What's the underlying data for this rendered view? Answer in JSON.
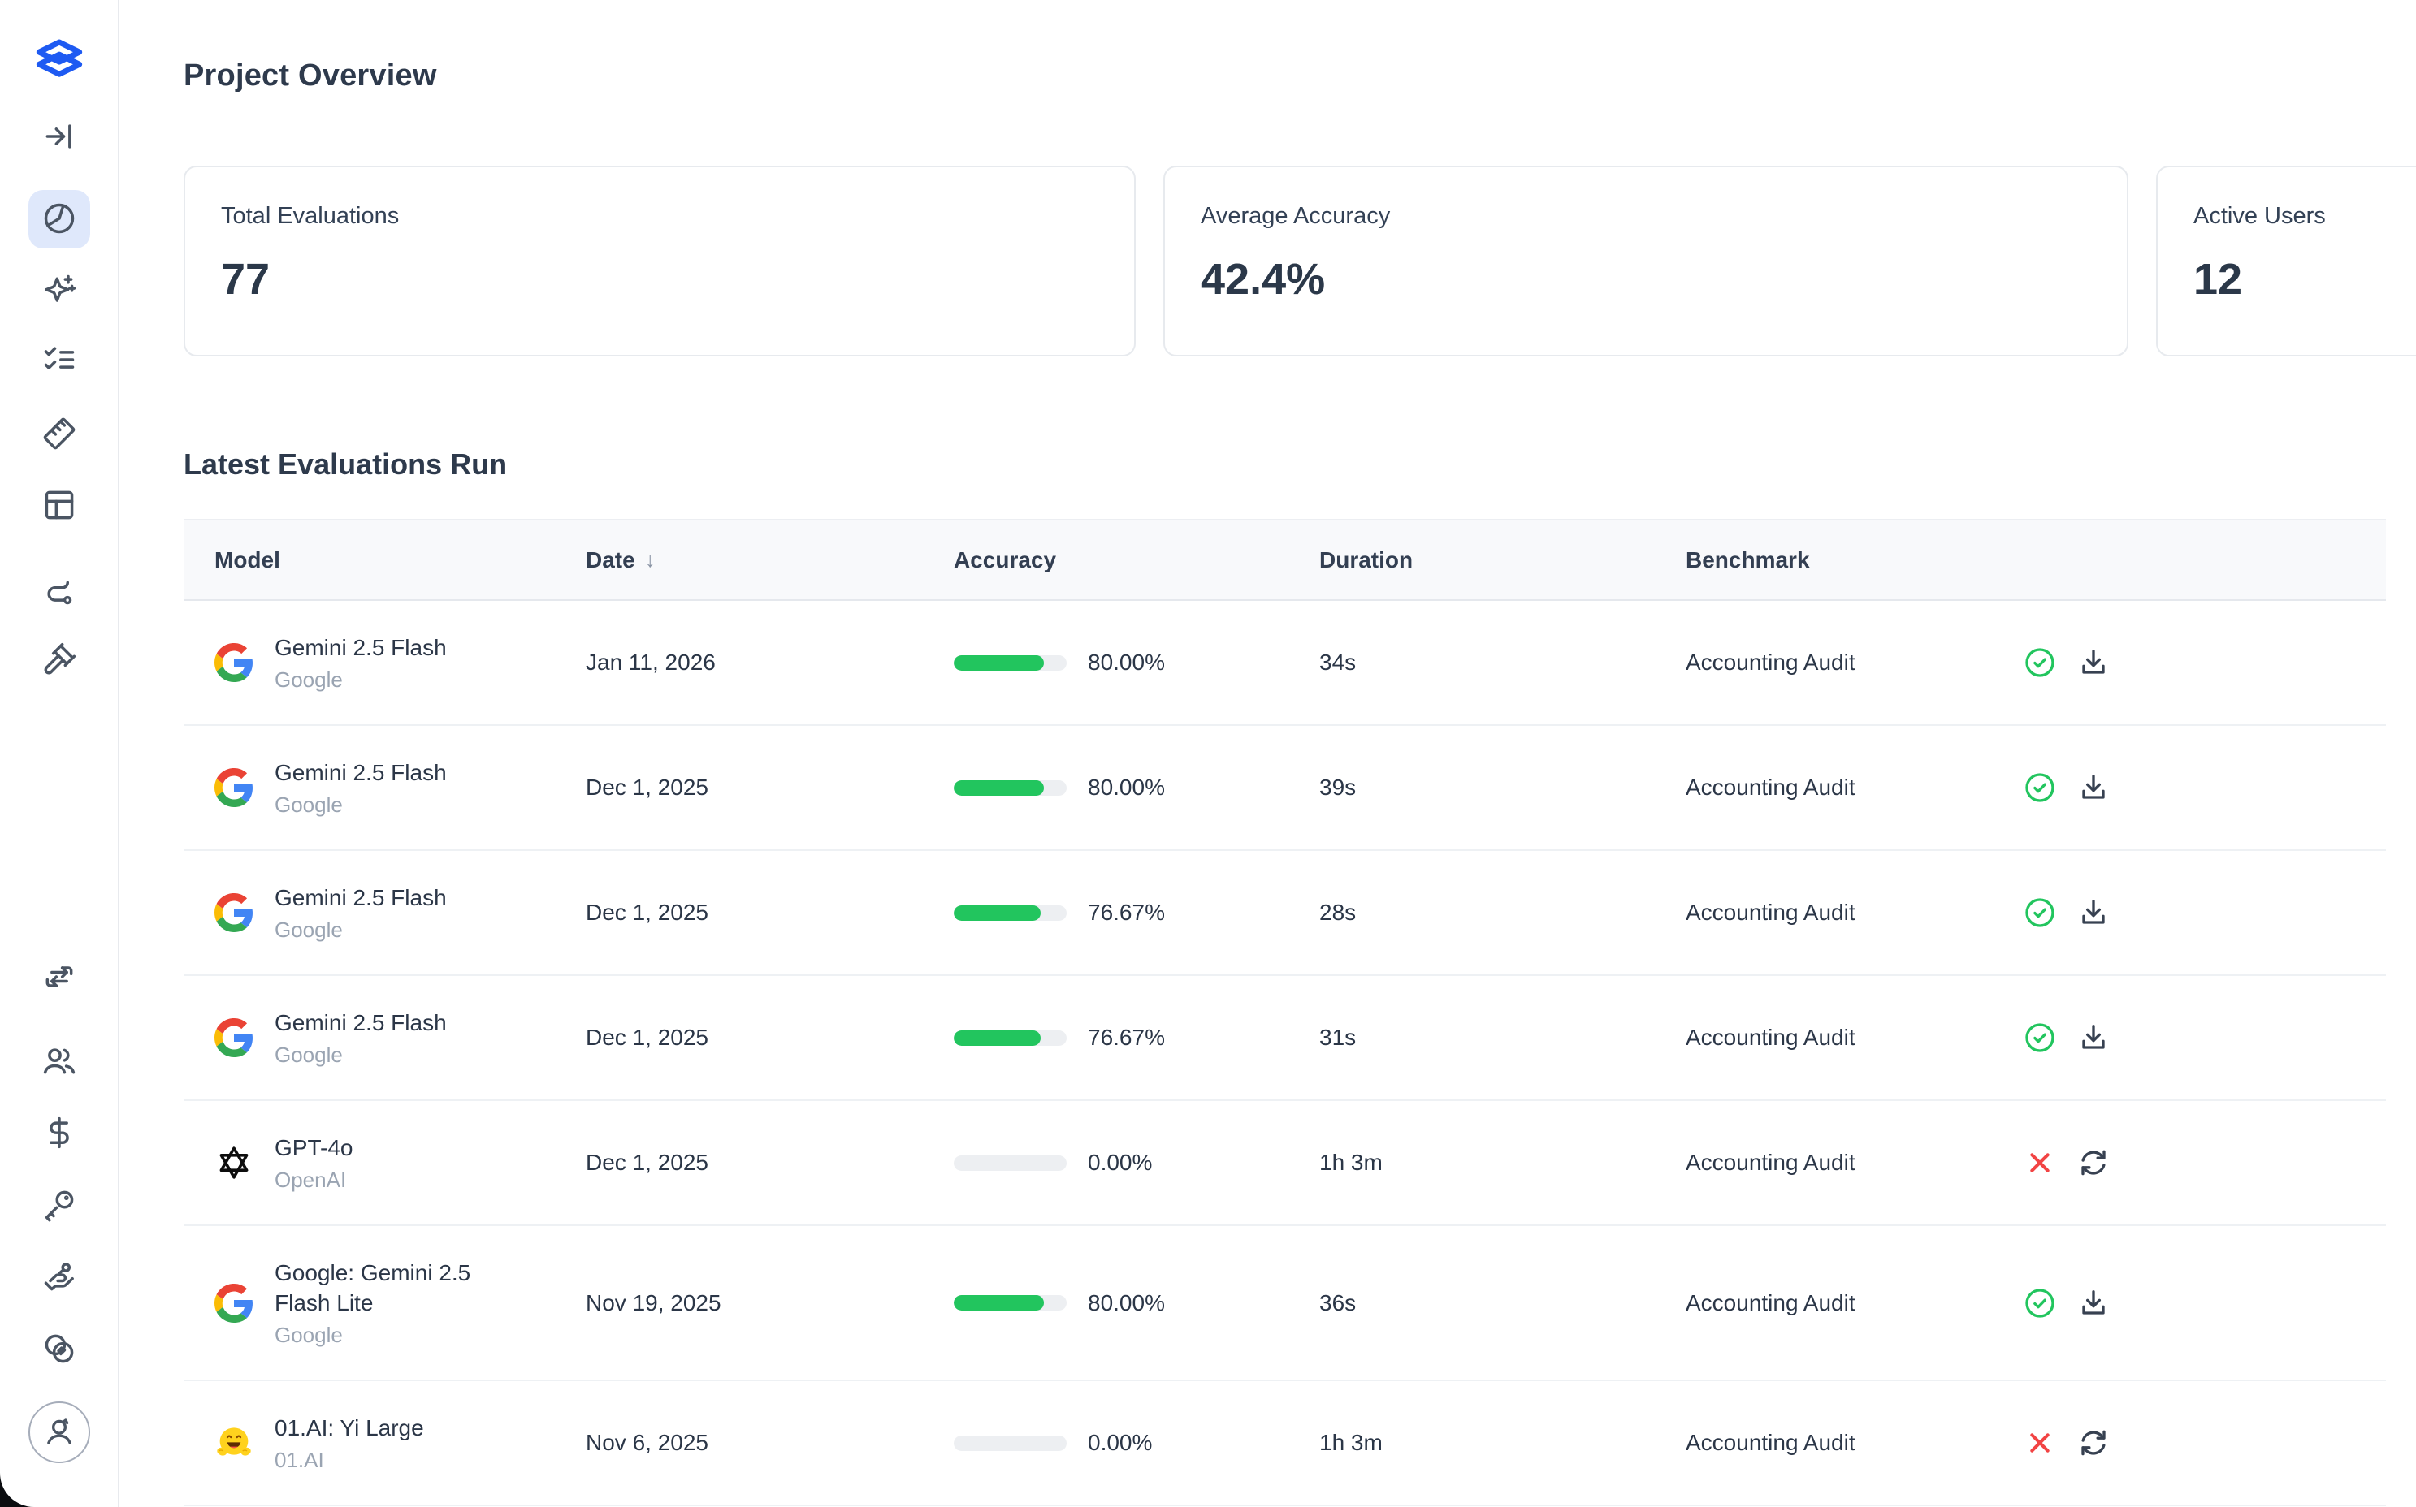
{
  "page": {
    "title": "Project Overview"
  },
  "colors": {
    "accent_blue": "#1e5af2",
    "success_green": "#22c55e",
    "error_red": "#ef4444",
    "active_item_bg": "#dfe8fb"
  },
  "sidebar": {
    "logo_icon": "layers-logo",
    "nav_top": [
      "arrow-right-to-line",
      "pie-chart",
      "sparkles",
      "list-checks",
      "ruler",
      "layout-panel",
      "route",
      "gavel"
    ],
    "active_item": "pie-chart",
    "nav_bottom": [
      "swap",
      "users",
      "dollar-sign",
      "key",
      "hand-key",
      "overlap-circles"
    ],
    "avatar_icon": "user"
  },
  "stats": [
    {
      "label": "Total Evaluations",
      "value": "77"
    },
    {
      "label": "Average Accuracy",
      "value": "42.4%"
    },
    {
      "label": "Active Users",
      "value": "12"
    }
  ],
  "table": {
    "title": "Latest Evaluations Run",
    "columns": [
      "Model",
      "Date",
      "Accuracy",
      "Duration",
      "Benchmark"
    ],
    "sort_column": "Date",
    "sort_indicator": "↓",
    "rows": [
      {
        "model": "Gemini 2.5 Flash",
        "provider": "Google",
        "provider_icon": "google",
        "date": "Jan 11, 2026",
        "accuracy": "80.00%",
        "accuracy_pct": 80,
        "duration": "34s",
        "benchmark": "Accounting Audit",
        "status": "success"
      },
      {
        "model": "Gemini 2.5 Flash",
        "provider": "Google",
        "provider_icon": "google",
        "date": "Dec 1, 2025",
        "accuracy": "80.00%",
        "accuracy_pct": 80,
        "duration": "39s",
        "benchmark": "Accounting Audit",
        "status": "success"
      },
      {
        "model": "Gemini 2.5 Flash",
        "provider": "Google",
        "provider_icon": "google",
        "date": "Dec 1, 2025",
        "accuracy": "76.67%",
        "accuracy_pct": 76.67,
        "duration": "28s",
        "benchmark": "Accounting Audit",
        "status": "success"
      },
      {
        "model": "Gemini 2.5 Flash",
        "provider": "Google",
        "provider_icon": "google",
        "date": "Dec 1, 2025",
        "accuracy": "76.67%",
        "accuracy_pct": 76.67,
        "duration": "31s",
        "benchmark": "Accounting Audit",
        "status": "success"
      },
      {
        "model": "GPT-4o",
        "provider": "OpenAI",
        "provider_icon": "openai",
        "date": "Dec 1, 2025",
        "accuracy": "0.00%",
        "accuracy_pct": 0,
        "duration": "1h 3m",
        "benchmark": "Accounting Audit",
        "status": "failed"
      },
      {
        "model": "Google: Gemini 2.5 Flash Lite",
        "provider": "Google",
        "provider_icon": "google",
        "date": "Nov 19, 2025",
        "accuracy": "80.00%",
        "accuracy_pct": 80,
        "duration": "36s",
        "benchmark": "Accounting Audit",
        "status": "success"
      },
      {
        "model": "01.AI: Yi Large",
        "provider": "01.AI",
        "provider_icon": "huggingface",
        "date": "Nov 6, 2025",
        "accuracy": "0.00%",
        "accuracy_pct": 0,
        "duration": "1h 3m",
        "benchmark": "Accounting Audit",
        "status": "failed"
      }
    ]
  }
}
